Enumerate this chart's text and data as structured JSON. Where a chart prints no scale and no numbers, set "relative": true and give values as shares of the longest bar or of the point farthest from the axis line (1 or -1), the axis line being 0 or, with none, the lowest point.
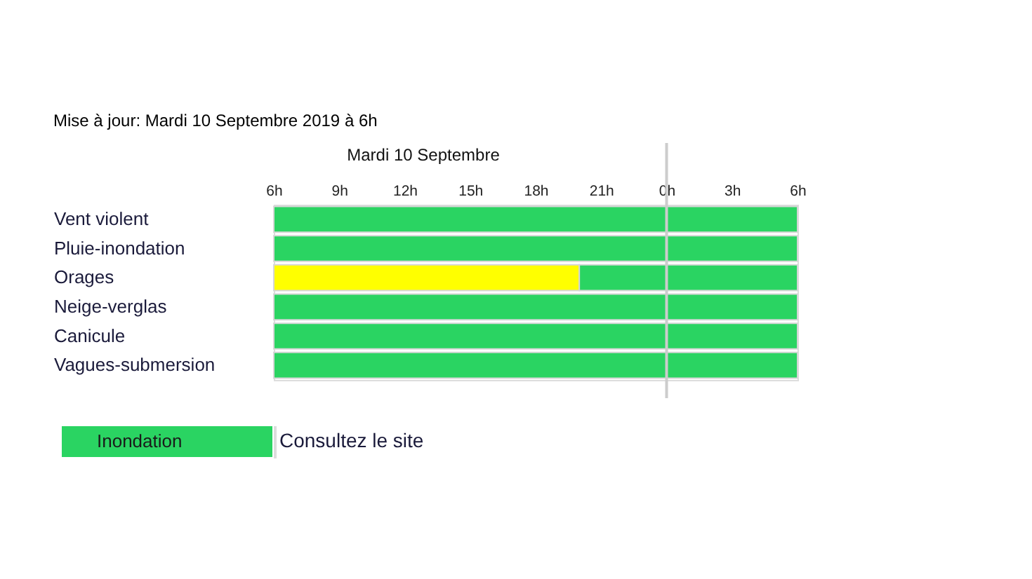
{
  "chart_data": [
    {
      "type": "bar",
      "orientation": "horizontal",
      "title": "Mise à jour: Mardi 10 Septembre 2019 à 6h",
      "xlabel": "Mardi 10 Septembre",
      "categories": [
        "Vent violent",
        "Pluie-inondation",
        "Orages",
        "Neige-verglas",
        "Canicule",
        "Vagues-submersion"
      ],
      "series": [
        {
          "color": "#ffff00",
          "base": [
            null,
            null,
            6,
            null,
            null,
            null
          ],
          "values": [
            null,
            null,
            14,
            null,
            null,
            null
          ]
        },
        {
          "color": "#2ad462",
          "base": [
            6,
            6,
            20,
            6,
            6,
            6
          ],
          "values": [
            24,
            24,
            10,
            24,
            24,
            24
          ]
        }
      ],
      "xlim": [
        6,
        30
      ],
      "xticks": [
        {
          "value": 6,
          "label": "6h"
        },
        {
          "value": 9,
          "label": "9h"
        },
        {
          "value": 12,
          "label": "12h"
        },
        {
          "value": 15,
          "label": "15h"
        },
        {
          "value": 18,
          "label": "18h"
        },
        {
          "value": 21,
          "label": "21h"
        }
      ],
      "x2lim": [
        -18,
        6
      ],
      "x2ticks": [
        {
          "value": 0,
          "label": "0h"
        },
        {
          "value": 3,
          "label": "3h"
        },
        {
          "value": 6,
          "label": "6h"
        }
      ],
      "grid": false,
      "ref_lines": [
        {
          "axis": "x",
          "value": 24,
          "color": "#cccccc"
        }
      ]
    },
    {
      "type": "bar",
      "orientation": "horizontal",
      "relative": true,
      "categories": [
        "Inondation"
      ],
      "values": [
        1
      ],
      "color": "#2ad462",
      "annotations": [
        "Consultez le site"
      ]
    }
  ]
}
